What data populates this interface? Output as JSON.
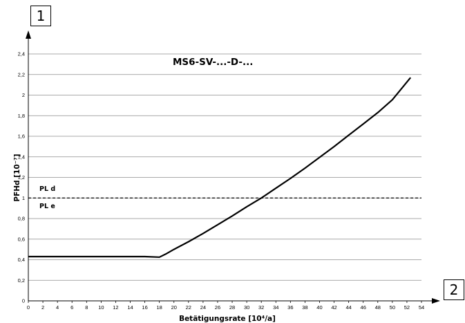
{
  "labels": {
    "box1": "1",
    "box2": "2"
  },
  "chart_data": {
    "type": "line",
    "title": "MS6-SV-...-D-...",
    "xlabel": "Betätigungsrate [10⁴/a]",
    "ylabel": "PFHd [10⁻⁷]",
    "xlim": [
      0,
      54
    ],
    "ylim": [
      0,
      2.4
    ],
    "x_ticks": [
      "0",
      "2",
      "4",
      "6",
      "8",
      "10",
      "12",
      "14",
      "16",
      "18",
      "20",
      "22",
      "24",
      "26",
      "28",
      "30",
      "32",
      "34",
      "36",
      "38",
      "40",
      "42",
      "44",
      "46",
      "48",
      "50",
      "52",
      "54"
    ],
    "y_ticks": [
      "0",
      "0,2",
      "0,4",
      "0,6",
      "0,8",
      "1",
      "1,2",
      "1,4",
      "1,6",
      "1,8",
      "2",
      "2,2",
      "2,4"
    ],
    "grid": "horizontal",
    "series": [
      {
        "x": [
          0,
          16,
          18,
          19,
          20,
          22,
          24,
          26,
          28,
          30,
          32,
          34,
          36,
          38,
          40,
          42,
          44,
          46,
          48,
          50,
          52.5
        ],
        "y": [
          0.43,
          0.43,
          0.425,
          0.46,
          0.5,
          0.575,
          0.655,
          0.74,
          0.825,
          0.915,
          1.0,
          1.095,
          1.19,
          1.29,
          1.395,
          1.5,
          1.61,
          1.72,
          1.83,
          1.955,
          2.17
        ]
      }
    ],
    "reference_line": {
      "y": 1.0,
      "style": "dashed"
    },
    "annotations": [
      {
        "text": "PL d",
        "position": "above reference line"
      },
      {
        "text": "PL e",
        "position": "below reference line"
      }
    ]
  }
}
